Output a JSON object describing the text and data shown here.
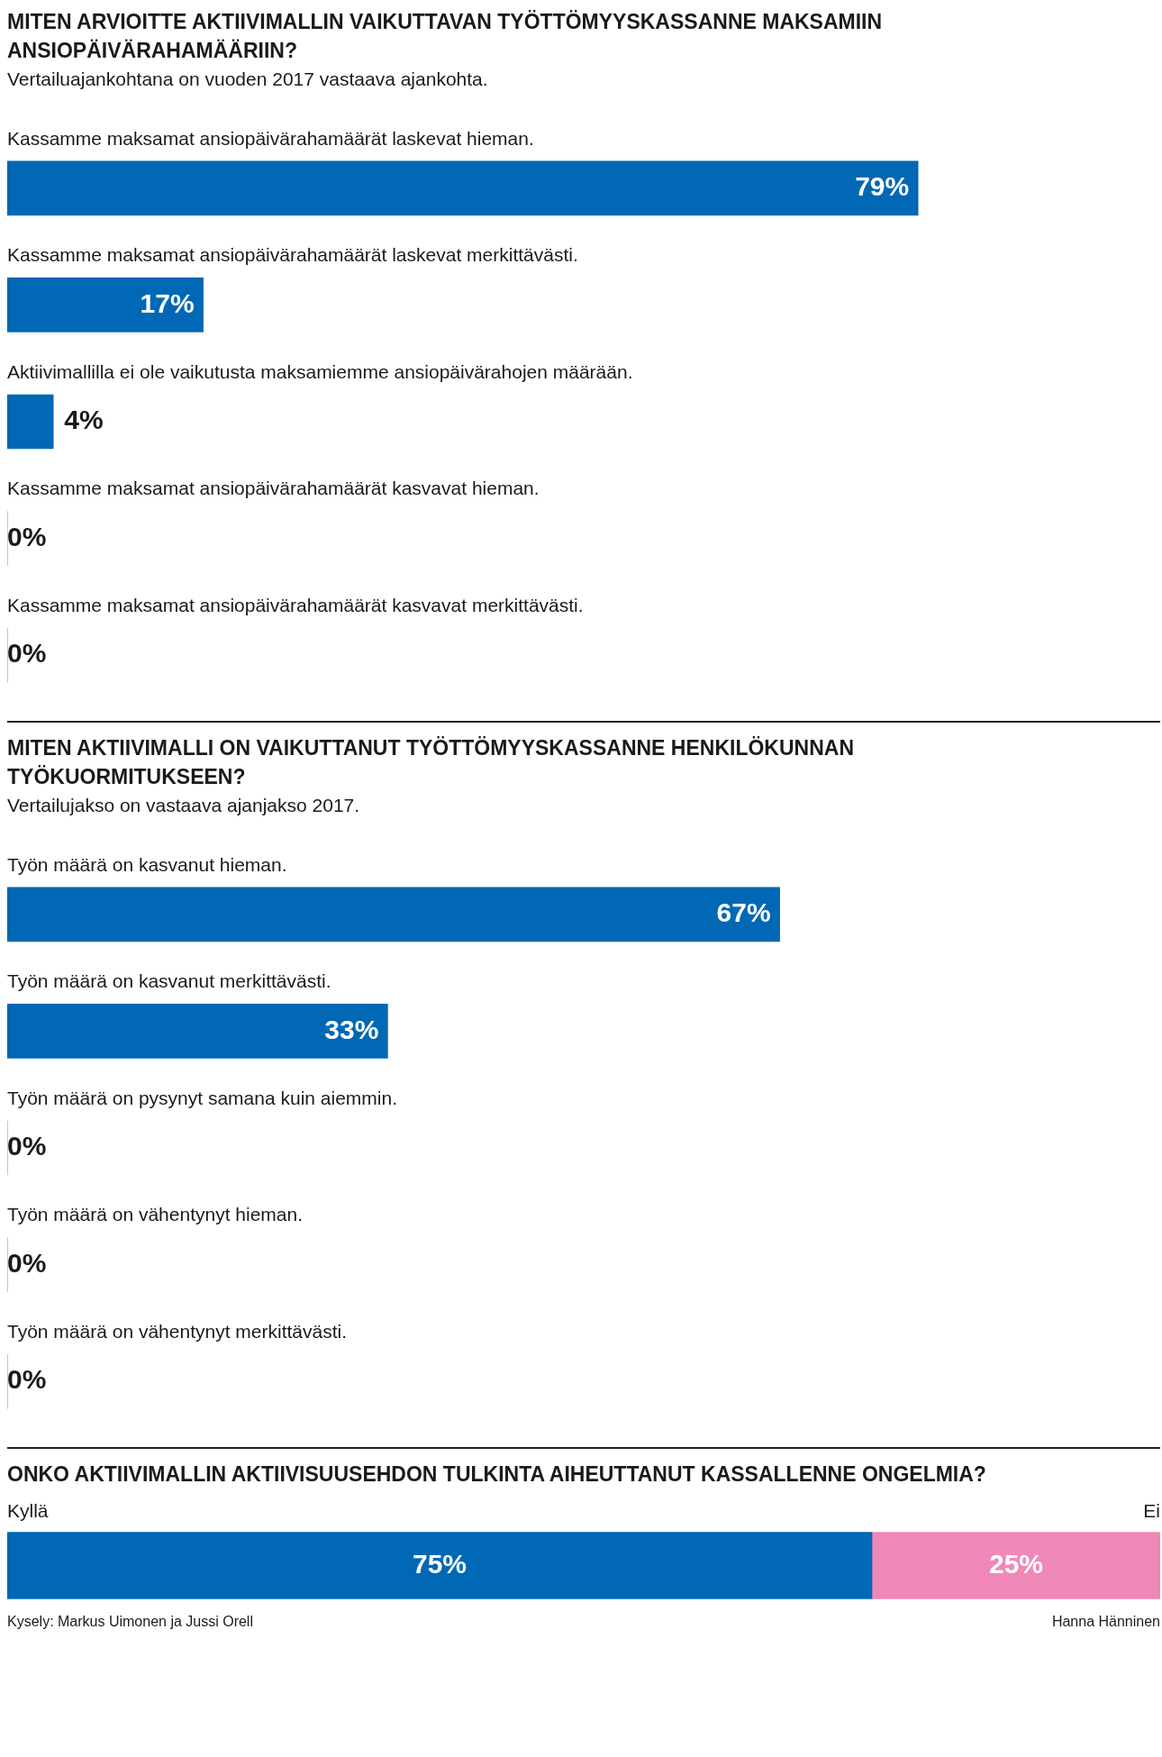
{
  "chart_data": [
    {
      "type": "bar",
      "orientation": "horizontal",
      "title": "MITEN ARVIOITTE AKTIIVIMALLIN VAIKUTTAVAN TYÖTTÖMYYSKASSANNE MAKSAMIIN ANSIOPÄIVÄRAHAMÄÄRIIN?",
      "subtitle": "Vertailuajankohtana on vuoden 2017 vastaava ajankohta.",
      "categories": [
        "Kassamme maksamat ansiopäivärahamäärät laskevat hieman.",
        "Kassamme maksamat ansiopäivärahamäärät laskevat merkittävästi.",
        "Aktiivimallilla ei ole vaikutusta maksamiemme ansiopäivärahojen määrään.",
        "Kassamme maksamat ansiopäivärahamäärät kasvavat hieman.",
        "Kassamme maksamat ansiopäivärahamäärät kasvavat merkittävästi."
      ],
      "values": [
        79,
        17,
        4,
        0,
        0
      ],
      "value_labels": [
        "79%",
        "17%",
        "4%",
        "0%",
        "0%"
      ],
      "color": "#0068b4",
      "xlim": [
        0,
        100
      ],
      "tick_labels": false
    },
    {
      "type": "bar",
      "orientation": "horizontal",
      "title": "MITEN AKTIIVIMALLI ON VAIKUTTANUT TYÖTTÖMYYSKASSANNE HENKILÖKUNNAN TYÖKUORMITUKSEEN?",
      "subtitle": "Vertailujakso on vastaava ajanjakso 2017.",
      "categories": [
        "Työn määrä on kasvanut hieman.",
        "Työn määrä on kasvanut merkittävästi.",
        "Työn määrä on pysynyt samana kuin aiemmin.",
        "Työn määrä on vähentynyt hieman.",
        "Työn määrä on vähentynyt merkittävästi."
      ],
      "values": [
        67,
        33,
        0,
        0,
        0
      ],
      "value_labels": [
        "67%",
        "33%",
        "0%",
        "0%",
        "0%"
      ],
      "color": "#0068b4",
      "xlim": [
        0,
        100
      ],
      "tick_labels": false
    },
    {
      "type": "bar",
      "orientation": "horizontal",
      "stacked": true,
      "title": "ONKO AKTIIVIMALLIN AKTIIVISUUSEHDON TULKINTA AIHEUTTANUT KASSALLENNE ONGELMIA?",
      "categories": [
        null
      ],
      "xlim": [
        0,
        100
      ],
      "tick_labels": false,
      "series": [
        {
          "name": "Kyllä",
          "color": "#0068b4",
          "values": [
            75
          ],
          "value_labels": [
            "75%"
          ]
        },
        {
          "name": "Ei",
          "color": "#ef88b8",
          "values": [
            25
          ],
          "value_labels": [
            "25%"
          ]
        }
      ],
      "annotations": [
        "Kysely: Markus Uimonen ja Jussi Orell",
        "Hanna Hänninen"
      ]
    }
  ]
}
